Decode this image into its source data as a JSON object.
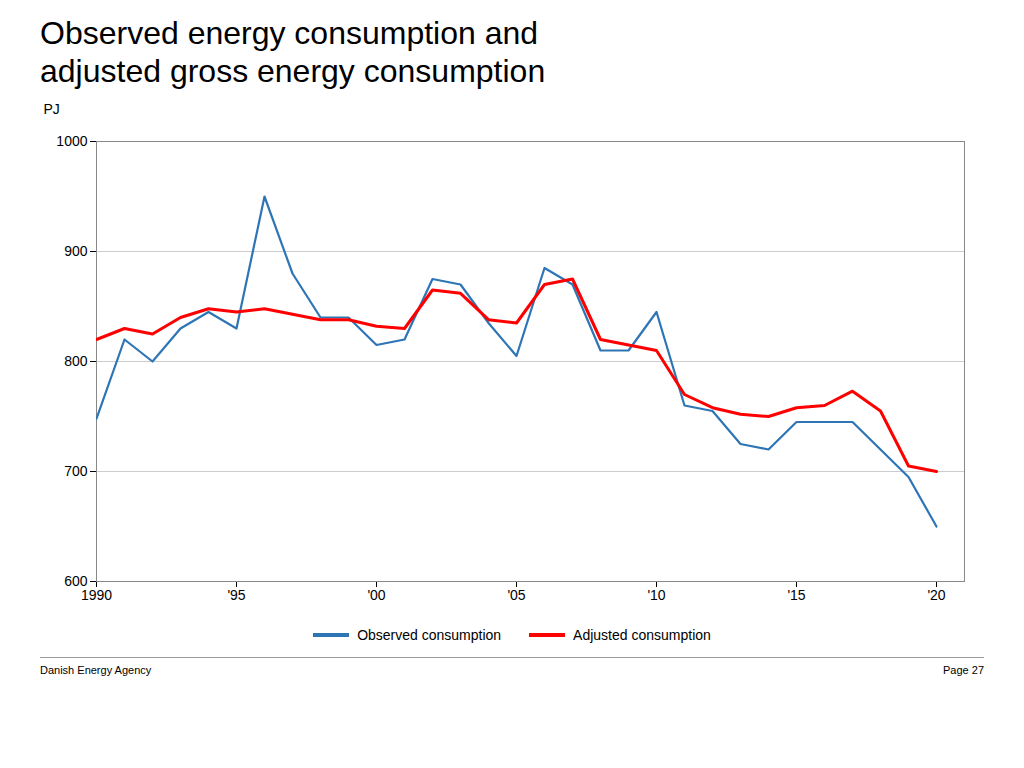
{
  "chart_data": {
    "type": "line",
    "title": "Observed energy consumption and adjusted gross energy consumption",
    "y_label": "PJ",
    "x": [
      1990,
      1991,
      1992,
      1993,
      1994,
      1995,
      1996,
      1997,
      1998,
      1999,
      2000,
      2001,
      2002,
      2003,
      2004,
      2005,
      2006,
      2007,
      2008,
      2009,
      2010,
      2011,
      2012,
      2013,
      2014,
      2015,
      2016,
      2017,
      2018,
      2019,
      2020
    ],
    "series": [
      {
        "name": "Observed consumption",
        "color": "#2E75B6",
        "values": [
          748,
          820,
          800,
          830,
          845,
          830,
          950,
          880,
          840,
          840,
          815,
          820,
          875,
          870,
          835,
          805,
          885,
          870,
          810,
          810,
          845,
          760,
          755,
          725,
          720,
          745,
          745,
          745,
          720,
          695,
          650
        ]
      },
      {
        "name": "Adjusted consumption",
        "color": "#FF0000",
        "values": [
          820,
          830,
          825,
          840,
          848,
          845,
          848,
          843,
          838,
          838,
          832,
          830,
          865,
          862,
          838,
          835,
          870,
          875,
          820,
          815,
          810,
          770,
          758,
          752,
          750,
          758,
          760,
          773,
          755,
          705,
          700
        ]
      }
    ],
    "xlim": [
      1990,
      2021
    ],
    "xticks": [
      1990,
      {
        "value": 1995,
        "label": "'95"
      },
      {
        "value": 2000,
        "label": "'00"
      },
      {
        "value": 2005,
        "label": "'05"
      },
      {
        "value": 2010,
        "label": "'10"
      },
      {
        "value": 2015,
        "label": "'15"
      },
      {
        "value": 2020,
        "label": "'20"
      }
    ],
    "ylim": [
      600,
      1000
    ],
    "yticks": [
      600,
      700,
      800,
      900,
      1000
    ],
    "grid": "y",
    "legend": "bottom",
    "annotations": [
      "Danish Energy Agency",
      "Page 27"
    ]
  }
}
